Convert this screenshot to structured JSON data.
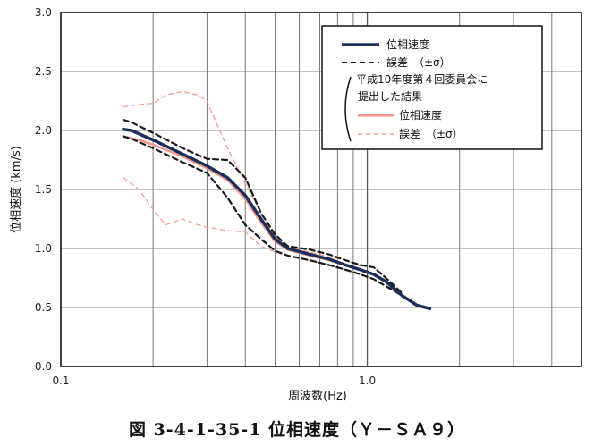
{
  "caption": "図 3-4-1-35-1 位相速度（Ｙ－ＳＡ９）",
  "chart_data": {
    "type": "line",
    "title": "",
    "xlabel": "周波数(Hz)",
    "ylabel": "位相速度 (km/s)",
    "xscale": "log",
    "xlim": [
      0.1,
      5.0
    ],
    "ylim": [
      0.0,
      3.0
    ],
    "x_ticks": [
      "0.1",
      "1.0"
    ],
    "y_ticks": [
      "0.0",
      "0.5",
      "1.0",
      "1.5",
      "2.0",
      "2.5",
      "3.0"
    ],
    "grid": true,
    "legend_position": "top-right",
    "legend": {
      "item1": "位相速度",
      "item2": "誤差　（±σ）",
      "note_line1": "平成10年度第４回委員会に",
      "note_line2": "提出した結果",
      "item3": "位相速度",
      "item4": "誤差　（±σ）"
    },
    "series": [
      {
        "name": "位相速度",
        "color": "#1c2e5a",
        "style": "solid",
        "x": [
          0.16,
          0.17,
          0.2,
          0.25,
          0.3,
          0.35,
          0.4,
          0.45,
          0.5,
          0.55,
          0.65,
          0.75,
          0.85,
          0.95,
          1.05,
          1.15,
          1.3,
          1.45,
          1.6
        ],
        "y": [
          2.01,
          2.0,
          1.92,
          1.8,
          1.7,
          1.6,
          1.45,
          1.25,
          1.08,
          1.0,
          0.95,
          0.91,
          0.86,
          0.82,
          0.78,
          0.72,
          0.6,
          0.52,
          0.49
        ]
      },
      {
        "name": "誤差　（±σ）",
        "color": "#1a1a1a",
        "style": "dashed",
        "x": [
          0.16,
          0.17,
          0.2,
          0.25,
          0.3,
          0.35,
          0.4,
          0.45,
          0.5,
          0.55,
          0.65,
          0.75,
          0.85,
          0.95,
          1.05,
          1.15,
          1.3
        ],
        "y": [
          2.09,
          2.07,
          1.98,
          1.85,
          1.76,
          1.75,
          1.6,
          1.3,
          1.12,
          1.02,
          0.99,
          0.95,
          0.9,
          0.86,
          0.84,
          0.75,
          0.62
        ]
      },
      {
        "name": "誤差　（±σ）",
        "color": "#1a1a1a",
        "style": "dashed",
        "x": [
          0.16,
          0.17,
          0.2,
          0.25,
          0.3,
          0.35,
          0.4,
          0.45,
          0.5,
          0.55,
          0.65,
          0.75,
          0.85,
          0.95,
          1.05,
          1.15,
          1.3
        ],
        "y": [
          1.95,
          1.93,
          1.85,
          1.73,
          1.64,
          1.43,
          1.2,
          1.08,
          0.98,
          0.94,
          0.9,
          0.86,
          0.82,
          0.78,
          0.74,
          0.68,
          0.6
        ]
      },
      {
        "name": "位相速度",
        "color": "#f2988a",
        "style": "solid",
        "x": [
          0.16,
          0.18,
          0.2,
          0.25,
          0.3,
          0.35,
          0.4,
          0.45,
          0.5,
          0.55,
          0.65,
          0.75,
          0.85,
          0.95
        ],
        "y": [
          1.95,
          1.92,
          1.88,
          1.78,
          1.68,
          1.58,
          1.42,
          1.22,
          1.06,
          0.99,
          0.94,
          0.9,
          0.86,
          0.82
        ]
      },
      {
        "name": "誤差　（±σ）",
        "color": "#f2988a",
        "style": "dashed",
        "x": [
          0.16,
          0.18,
          0.2,
          0.22,
          0.25,
          0.28,
          0.3,
          0.32,
          0.35,
          0.4,
          0.45,
          0.5,
          0.55,
          0.65,
          0.75,
          0.85,
          0.95
        ],
        "y": [
          2.2,
          2.22,
          2.23,
          2.3,
          2.33,
          2.3,
          2.25,
          2.08,
          1.85,
          1.55,
          1.3,
          1.1,
          1.01,
          0.97,
          0.93,
          0.9,
          0.85
        ]
      },
      {
        "name": "誤差　（±σ）",
        "color": "#f2988a",
        "style": "dashed",
        "x": [
          0.16,
          0.18,
          0.2,
          0.22,
          0.25,
          0.28,
          0.3,
          0.35,
          0.4,
          0.45,
          0.5,
          0.55,
          0.65,
          0.75,
          0.85,
          0.95
        ],
        "y": [
          1.6,
          1.5,
          1.33,
          1.2,
          1.25,
          1.2,
          1.18,
          1.15,
          1.14,
          1.02,
          0.97,
          0.94,
          0.9,
          0.86,
          0.82,
          0.78
        ]
      }
    ]
  }
}
